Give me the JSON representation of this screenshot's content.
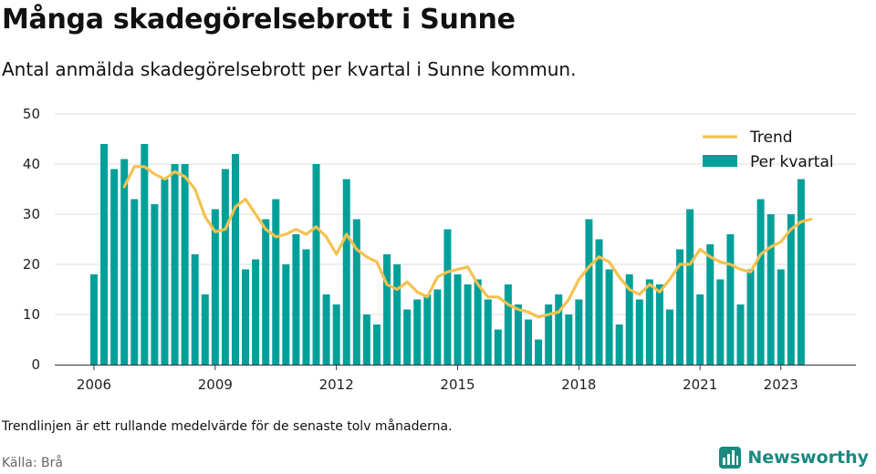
{
  "header": {
    "title": "Många skadegörelsebrott i Sunne",
    "subtitle": "Antal anmälda skadegörelsebrott per kvartal i Sunne kommun."
  },
  "footer": {
    "note": "Trendlinjen är ett rullande medelvärde för de senaste tolv månaderna.",
    "source": "Källa: Brå",
    "brand": "Newsworthy"
  },
  "colors": {
    "bar": "#00a09a",
    "trend": "#f5c24f",
    "grid": "#dddddd",
    "brand": "#1a8a80"
  },
  "chart_data": {
    "type": "bar",
    "ylim": [
      0,
      50
    ],
    "yticks": [
      0,
      10,
      20,
      30,
      40,
      50
    ],
    "xticks": [
      "2006",
      "2009",
      "2012",
      "2015",
      "2018",
      "2021",
      "2023"
    ],
    "grid": true,
    "legend_position": "top-right",
    "categories": [
      "2006 Q1",
      "2006 Q2",
      "2006 Q3",
      "2006 Q4",
      "2007 Q1",
      "2007 Q2",
      "2007 Q3",
      "2007 Q4",
      "2008 Q1",
      "2008 Q2",
      "2008 Q3",
      "2008 Q4",
      "2009 Q1",
      "2009 Q2",
      "2009 Q3",
      "2009 Q4",
      "2010 Q1",
      "2010 Q2",
      "2010 Q3",
      "2010 Q4",
      "2011 Q1",
      "2011 Q2",
      "2011 Q3",
      "2011 Q4",
      "2012 Q1",
      "2012 Q2",
      "2012 Q3",
      "2012 Q4",
      "2013 Q1",
      "2013 Q2",
      "2013 Q3",
      "2013 Q4",
      "2014 Q1",
      "2014 Q2",
      "2014 Q3",
      "2014 Q4",
      "2015 Q1",
      "2015 Q2",
      "2015 Q3",
      "2015 Q4",
      "2016 Q1",
      "2016 Q2",
      "2016 Q3",
      "2016 Q4",
      "2017 Q1",
      "2017 Q2",
      "2017 Q3",
      "2017 Q4",
      "2018 Q1",
      "2018 Q2",
      "2018 Q3",
      "2018 Q4",
      "2019 Q1",
      "2019 Q2",
      "2019 Q3",
      "2019 Q4",
      "2020 Q1",
      "2020 Q2",
      "2020 Q3",
      "2020 Q4",
      "2021 Q1",
      "2021 Q2",
      "2021 Q3",
      "2021 Q4",
      "2022 Q1",
      "2022 Q2",
      "2022 Q3",
      "2022 Q4",
      "2023 Q1",
      "2023 Q2",
      "2023 Q3",
      "2023 Q4"
    ],
    "series": [
      {
        "name": "Per kvartal",
        "kind": "bar",
        "values": [
          18,
          44,
          39,
          41,
          33,
          44,
          32,
          37,
          40,
          40,
          22,
          14,
          31,
          39,
          42,
          19,
          21,
          29,
          33,
          20,
          26,
          23,
          40,
          14,
          12,
          37,
          29,
          10,
          8,
          22,
          20,
          11,
          13,
          14,
          15,
          27,
          18,
          16,
          17,
          13,
          7,
          16,
          12,
          9,
          5,
          12,
          14,
          10,
          13,
          29,
          25,
          19,
          8,
          18,
          13,
          17,
          16,
          11,
          23,
          31,
          14,
          24,
          17,
          26,
          12,
          19,
          33,
          30,
          19,
          30,
          37,
          null
        ]
      },
      {
        "name": "Trend",
        "kind": "line",
        "values": [
          null,
          null,
          null,
          35.5,
          39.5,
          39.5,
          38,
          37,
          38.5,
          37.5,
          35,
          29.5,
          26.5,
          27,
          31.5,
          33,
          30,
          27,
          25.5,
          26,
          27,
          26,
          27.5,
          25.5,
          22,
          26,
          23,
          21.5,
          20.5,
          16,
          15,
          16.5,
          14.5,
          13.5,
          17.5,
          18.5,
          19,
          19.5,
          16,
          13.5,
          13.5,
          12,
          11,
          10.5,
          9.5,
          10,
          10.5,
          13,
          17,
          19.5,
          21.5,
          20.5,
          17.5,
          15,
          14,
          16,
          14.5,
          17,
          20,
          20,
          23,
          21.5,
          20.5,
          20,
          19,
          18.5,
          22,
          23.5,
          24.5,
          27,
          28.5,
          29
        ]
      }
    ]
  }
}
